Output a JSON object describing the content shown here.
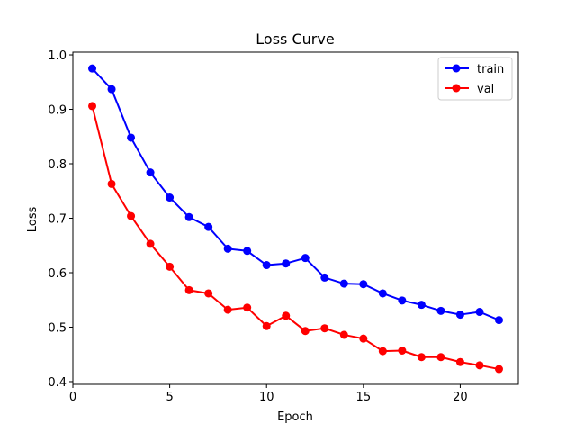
{
  "chart_data": {
    "type": "line",
    "title": "Loss Curve",
    "xlabel": "Epoch",
    "ylabel": "Loss",
    "xlim": [
      0,
      23
    ],
    "ylim": [
      0.395,
      1.005
    ],
    "xticks": [
      0,
      5,
      10,
      15,
      20
    ],
    "yticks": [
      0.4,
      0.5,
      0.6,
      0.7,
      0.8,
      0.9,
      1.0
    ],
    "ytick_labels": [
      "0.4",
      "0.5",
      "0.6",
      "0.7",
      "0.8",
      "0.9",
      "1.0"
    ],
    "grid": false,
    "legend": "top-right",
    "x": [
      1,
      2,
      3,
      4,
      5,
      6,
      7,
      8,
      9,
      10,
      11,
      12,
      13,
      14,
      15,
      16,
      17,
      18,
      19,
      20,
      21,
      22
    ],
    "series": [
      {
        "name": "train",
        "color": "#0000ff",
        "values": [
          0.975,
          0.937,
          0.848,
          0.784,
          0.738,
          0.702,
          0.684,
          0.644,
          0.64,
          0.614,
          0.617,
          0.627,
          0.591,
          0.58,
          0.579,
          0.562,
          0.549,
          0.541,
          0.53,
          0.523,
          0.528,
          0.513
        ]
      },
      {
        "name": "val",
        "color": "#ff0000",
        "values": [
          0.906,
          0.763,
          0.704,
          0.653,
          0.611,
          0.568,
          0.562,
          0.532,
          0.536,
          0.502,
          0.521,
          0.493,
          0.498,
          0.486,
          0.479,
          0.456,
          0.457,
          0.445,
          0.445,
          0.436,
          0.43,
          0.423
        ]
      }
    ]
  }
}
